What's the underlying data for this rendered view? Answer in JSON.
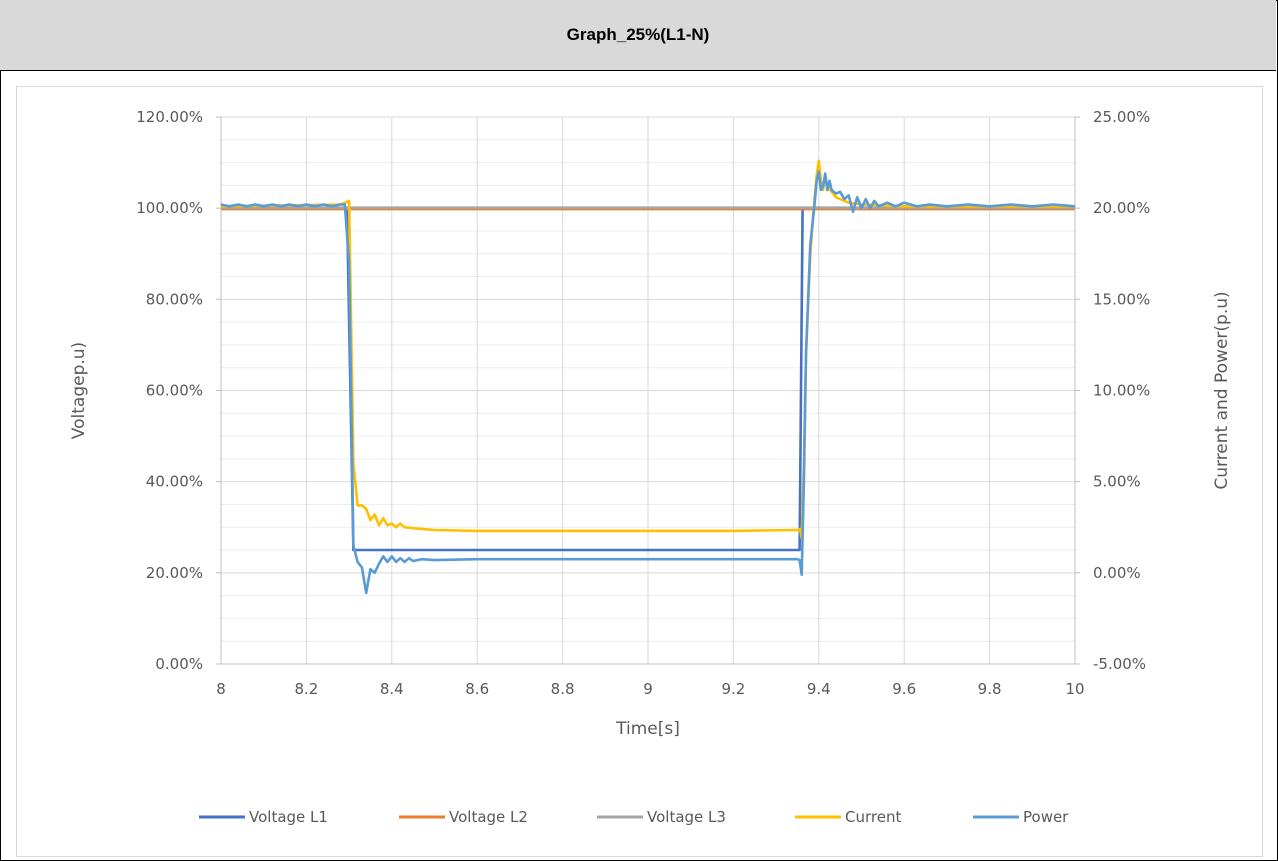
{
  "title": "Graph_25%(L1-N)",
  "chart_data": {
    "type": "line",
    "title": "Graph_25%(L1-N)",
    "xlabel": "Time[s]",
    "ylabel_left": "Voltagep.u)",
    "ylabel_right": "Current and Power(p.u)",
    "xlim": [
      8,
      10
    ],
    "ylim_left": [
      0,
      120
    ],
    "ylim_right": [
      -5,
      25
    ],
    "x_ticks": [
      "8",
      "8.2",
      "8.4",
      "8.6",
      "8.8",
      "9",
      "9.2",
      "9.4",
      "9.6",
      "9.8",
      "10"
    ],
    "y_ticks_left": [
      "0.00%",
      "20.00%",
      "40.00%",
      "60.00%",
      "80.00%",
      "100.00%",
      "120.00%"
    ],
    "y_ticks_right": [
      "-5.00%",
      "0.00%",
      "5.00%",
      "10.00%",
      "15.00%",
      "20.00%",
      "25.00%"
    ],
    "grid": true,
    "legend_position": "bottom",
    "series": [
      {
        "name": "Voltage L1",
        "axis": "left",
        "color": "#4472c4",
        "points": [
          [
            8,
            100
          ],
          [
            8.295,
            100
          ],
          [
            8.31,
            25
          ],
          [
            9.355,
            25
          ],
          [
            9.362,
            100
          ],
          [
            10,
            100
          ]
        ]
      },
      {
        "name": "Voltage L2",
        "axis": "left",
        "color": "#ed7d31",
        "points": [
          [
            8,
            99.8
          ],
          [
            10,
            99.8
          ]
        ]
      },
      {
        "name": "Voltage L3",
        "axis": "left",
        "color": "#a5a5a5",
        "points": [
          [
            8,
            100.1
          ],
          [
            10,
            100.1
          ]
        ]
      },
      {
        "name": "Current",
        "axis": "right",
        "color": "#ffc000",
        "points": [
          [
            8,
            20.1
          ],
          [
            8.28,
            20.2
          ],
          [
            8.3,
            20.4
          ],
          [
            8.31,
            6.0
          ],
          [
            8.32,
            3.7
          ],
          [
            8.33,
            3.7
          ],
          [
            8.34,
            3.5
          ],
          [
            8.35,
            2.9
          ],
          [
            8.36,
            3.2
          ],
          [
            8.37,
            2.6
          ],
          [
            8.38,
            3.0
          ],
          [
            8.39,
            2.6
          ],
          [
            8.4,
            2.7
          ],
          [
            8.41,
            2.5
          ],
          [
            8.42,
            2.7
          ],
          [
            8.43,
            2.5
          ],
          [
            8.45,
            2.45
          ],
          [
            8.5,
            2.35
          ],
          [
            8.6,
            2.3
          ],
          [
            8.8,
            2.3
          ],
          [
            9.0,
            2.3
          ],
          [
            9.2,
            2.3
          ],
          [
            9.35,
            2.35
          ],
          [
            9.356,
            2.4
          ],
          [
            9.36,
            1.9
          ],
          [
            9.365,
            6.0
          ],
          [
            9.37,
            12.0
          ],
          [
            9.38,
            17.5
          ],
          [
            9.39,
            20.5
          ],
          [
            9.395,
            21.8
          ],
          [
            9.4,
            22.6
          ],
          [
            9.405,
            21.5
          ],
          [
            9.41,
            21.0
          ],
          [
            9.415,
            21.8
          ],
          [
            9.42,
            21.2
          ],
          [
            9.43,
            20.9
          ],
          [
            9.44,
            20.6
          ],
          [
            9.45,
            20.5
          ],
          [
            9.47,
            20.3
          ],
          [
            9.5,
            20.2
          ],
          [
            9.6,
            20.1
          ],
          [
            10,
            20.1
          ]
        ]
      },
      {
        "name": "Power",
        "axis": "right",
        "color": "#5b9bd5",
        "points": [
          [
            8,
            20.2
          ],
          [
            8.02,
            20.1
          ],
          [
            8.04,
            20.2
          ],
          [
            8.06,
            20.1
          ],
          [
            8.08,
            20.2
          ],
          [
            8.1,
            20.1
          ],
          [
            8.12,
            20.2
          ],
          [
            8.14,
            20.1
          ],
          [
            8.16,
            20.2
          ],
          [
            8.18,
            20.1
          ],
          [
            8.2,
            20.2
          ],
          [
            8.22,
            20.1
          ],
          [
            8.24,
            20.2
          ],
          [
            8.26,
            20.1
          ],
          [
            8.28,
            20.2
          ],
          [
            8.29,
            20.2
          ],
          [
            8.3,
            17.0
          ],
          [
            8.31,
            1.5
          ],
          [
            8.32,
            0.6
          ],
          [
            8.33,
            0.3
          ],
          [
            8.34,
            -1.1
          ],
          [
            8.35,
            0.2
          ],
          [
            8.36,
            0.0
          ],
          [
            8.37,
            0.5
          ],
          [
            8.38,
            0.9
          ],
          [
            8.39,
            0.6
          ],
          [
            8.4,
            0.9
          ],
          [
            8.41,
            0.6
          ],
          [
            8.42,
            0.8
          ],
          [
            8.43,
            0.6
          ],
          [
            8.44,
            0.8
          ],
          [
            8.45,
            0.65
          ],
          [
            8.47,
            0.75
          ],
          [
            8.5,
            0.7
          ],
          [
            8.6,
            0.75
          ],
          [
            8.8,
            0.75
          ],
          [
            9.0,
            0.75
          ],
          [
            9.2,
            0.75
          ],
          [
            9.35,
            0.75
          ],
          [
            9.355,
            0.7
          ],
          [
            9.36,
            -0.1
          ],
          [
            9.365,
            5.0
          ],
          [
            9.37,
            12.0
          ],
          [
            9.38,
            18.0
          ],
          [
            9.39,
            20.2
          ],
          [
            9.395,
            21.5
          ],
          [
            9.4,
            22.0
          ],
          [
            9.405,
            21.0
          ],
          [
            9.41,
            21.2
          ],
          [
            9.415,
            21.9
          ],
          [
            9.42,
            21.0
          ],
          [
            9.425,
            21.5
          ],
          [
            9.43,
            21.0
          ],
          [
            9.44,
            20.8
          ],
          [
            9.45,
            20.9
          ],
          [
            9.46,
            20.5
          ],
          [
            9.47,
            20.7
          ],
          [
            9.48,
            19.8
          ],
          [
            9.49,
            20.6
          ],
          [
            9.5,
            20.0
          ],
          [
            9.51,
            20.5
          ],
          [
            9.52,
            20.0
          ],
          [
            9.53,
            20.4
          ],
          [
            9.54,
            20.1
          ],
          [
            9.56,
            20.3
          ],
          [
            9.58,
            20.1
          ],
          [
            9.6,
            20.3
          ],
          [
            9.63,
            20.1
          ],
          [
            9.66,
            20.2
          ],
          [
            9.7,
            20.1
          ],
          [
            9.75,
            20.2
          ],
          [
            9.8,
            20.1
          ],
          [
            9.85,
            20.2
          ],
          [
            9.9,
            20.1
          ],
          [
            9.95,
            20.2
          ],
          [
            10,
            20.1
          ]
        ]
      }
    ]
  }
}
